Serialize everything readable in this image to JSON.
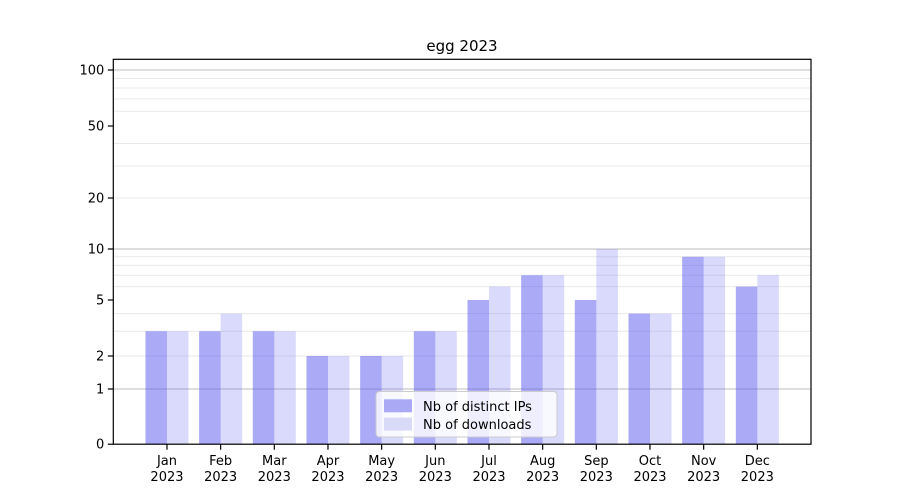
{
  "chart_data": {
    "type": "bar",
    "title": "egg 2023",
    "categories": [
      "Jan",
      "Feb",
      "Mar",
      "Apr",
      "May",
      "Jun",
      "Jul",
      "Aug",
      "Sep",
      "Oct",
      "Nov",
      "Dec"
    ],
    "category_year": "2023",
    "x_tick_labels": [
      "Jan 2023",
      "Feb 2023",
      "Mar 2023",
      "Apr 2023",
      "May 2023",
      "Jun 2023",
      "Jul 2023",
      "Aug 2023",
      "Sep 2023",
      "Oct 2023",
      "Nov 2023",
      "Dec 2023"
    ],
    "series": [
      {
        "name": "Nb of distinct IPs",
        "values": [
          3,
          3,
          3,
          2,
          2,
          3,
          5,
          7,
          5,
          4,
          9,
          6
        ],
        "fill": "rgba(85,85,240,0.50)",
        "legend_color": "#a9a9f6"
      },
      {
        "name": "Nb of downloads",
        "values": [
          3,
          4,
          3,
          2,
          2,
          3,
          6,
          7,
          10,
          4,
          9,
          7
        ],
        "fill": "rgba(85,85,240,0.22)",
        "legend_color": "#d9d9f8"
      }
    ],
    "y_ticks": [
      0,
      1,
      2,
      5,
      10,
      20,
      50,
      100
    ],
    "y_tick_labels": [
      "0",
      "1",
      "2",
      "5",
      "10",
      "20",
      "50",
      "100"
    ],
    "y_scale": "log above 1, linear 0-1",
    "ylim": [
      0,
      120
    ],
    "grid": true,
    "legend_position": "lower center"
  },
  "colors": {
    "background": "#ffffff",
    "spine": "#000000",
    "grid_major": "#bdbdbd",
    "grid_minor": "#e9e9e9",
    "legend_bg": "rgba(255,255,255,0.8)",
    "legend_border": "#cccccc",
    "text": "#000000"
  }
}
